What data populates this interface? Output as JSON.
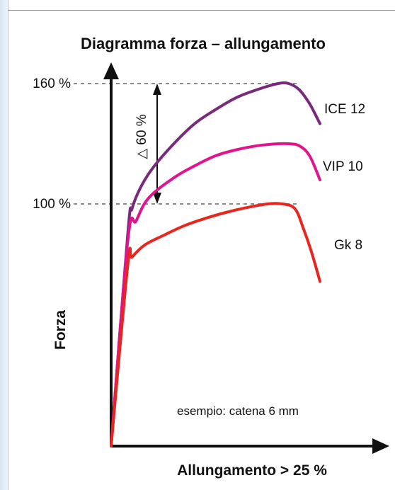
{
  "chart_data": {
    "type": "line",
    "title": "Diagramma forza – allungamento",
    "xlabel": "Allungamento > 25 %",
    "ylabel": "Forza",
    "y_ticks": [
      "160 %",
      "100 %"
    ],
    "y_tick_values": [
      160,
      100
    ],
    "delta_annotation": "△ 60 %",
    "note": "esempio: catena 6 mm",
    "grid": false,
    "legend": "inline-right",
    "series": [
      {
        "name": "ICE 12",
        "color": "#7a2a7c",
        "x": [
          0,
          8,
          10,
          14,
          20,
          30,
          40,
          50,
          60,
          70,
          80,
          85,
          90,
          95,
          100
        ],
        "y": [
          0,
          88,
          98,
          108,
          118,
          130,
          140,
          147,
          153,
          157,
          160,
          160,
          157,
          150,
          140
        ]
      },
      {
        "name": "VIP 10",
        "color": "#e0148c",
        "x": [
          0,
          8,
          12,
          18,
          30,
          40,
          50,
          60,
          70,
          80,
          85,
          90,
          95,
          100
        ],
        "y": [
          0,
          85,
          93,
          103,
          113,
          119,
          124,
          127,
          129,
          130,
          130,
          129,
          124,
          112
        ]
      },
      {
        "name": "Gk 8",
        "color": "#e6261f",
        "x": [
          0,
          8,
          10,
          16,
          25,
          35,
          45,
          55,
          65,
          75,
          82,
          88,
          92,
          96,
          100
        ],
        "y": [
          0,
          75,
          78,
          83,
          87,
          91,
          94,
          96.5,
          98.5,
          100,
          100,
          98,
          90,
          80,
          68
        ]
      }
    ]
  }
}
